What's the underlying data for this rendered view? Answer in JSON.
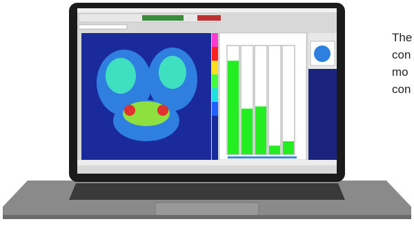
{
  "side_text": [
    "The",
    "con",
    "mo",
    "con"
  ],
  "bar_panel": {
    "values": [
      86,
      42,
      44,
      8,
      12
    ],
    "color": "#22ee22"
  }
}
